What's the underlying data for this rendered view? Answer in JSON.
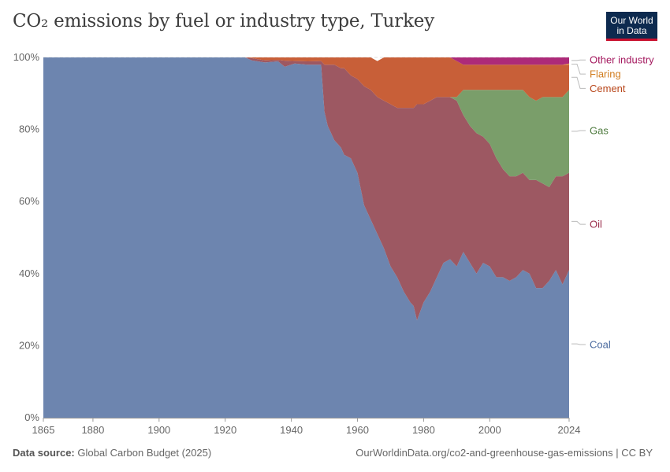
{
  "title": "CO₂ emissions by fuel or industry type, Turkey",
  "logo": {
    "line1": "Our World",
    "line2": "in Data"
  },
  "footer": {
    "source_label": "Data source:",
    "source": "Global Carbon Budget (2025)",
    "url": "OurWorldinData.org/co2-and-greenhouse-gas-emissions | CC BY"
  },
  "chart_data": {
    "type": "area",
    "stacked": true,
    "percent": true,
    "x_ticks": [
      "1865",
      "1880",
      "1900",
      "1920",
      "1940",
      "1960",
      "1980",
      "2000",
      "2024"
    ],
    "y_ticks": [
      "0%",
      "20%",
      "40%",
      "60%",
      "80%",
      "100%"
    ],
    "ylim": [
      0,
      100
    ],
    "xlim": [
      1865,
      2024
    ],
    "grid": "horizontal",
    "legend_position": "right",
    "x": [
      1865,
      1926,
      1928,
      1932,
      1936,
      1938,
      1941,
      1945,
      1949,
      1950,
      1951,
      1953,
      1955,
      1956,
      1958,
      1960,
      1962,
      1964,
      1966,
      1968,
      1970,
      1972,
      1974,
      1976,
      1977,
      1978,
      1980,
      1982,
      1984,
      1986,
      1988,
      1990,
      1992,
      1994,
      1996,
      1998,
      2000,
      2002,
      2004,
      2006,
      2008,
      2010,
      2012,
      2014,
      2016,
      2018,
      2020,
      2022,
      2024
    ],
    "series": [
      {
        "name": "Coal",
        "color": "#6d85af",
        "values": [
          100,
          100,
          99.2,
          98.6,
          98.9,
          97.4,
          98.3,
          98,
          98,
          85,
          81,
          77,
          75,
          73,
          72,
          68,
          59,
          55,
          51,
          47,
          42,
          39,
          35,
          32,
          31,
          27,
          32,
          35,
          39,
          43,
          44,
          42,
          46,
          43,
          40,
          43,
          42,
          39,
          39,
          38,
          39,
          41,
          40,
          36,
          36,
          38,
          41,
          37,
          41
        ]
      },
      {
        "name": "Oil",
        "color": "#9d5862",
        "values": [
          0,
          0,
          0.6,
          0.6,
          0.4,
          1.7,
          0.7,
          0.9,
          1,
          13,
          17,
          21,
          22,
          24,
          23,
          26,
          33,
          36,
          38,
          41,
          45,
          47,
          51,
          54,
          55,
          60,
          55,
          53,
          50,
          46,
          45,
          46,
          38,
          38,
          39,
          35,
          34,
          33,
          30,
          29,
          28,
          27,
          26,
          30,
          29,
          26,
          26,
          30,
          27
        ]
      },
      {
        "name": "Gas",
        "color": "#7a9e6a",
        "values": [
          0,
          0,
          0,
          0,
          0,
          0,
          0,
          0,
          0,
          0,
          0,
          0,
          0,
          0,
          0,
          0,
          0,
          0,
          0,
          0,
          0,
          0,
          0,
          0,
          0,
          0,
          0,
          0,
          0,
          0,
          0,
          1,
          7,
          10,
          12,
          13,
          15,
          19,
          22,
          24,
          24,
          23,
          23,
          22,
          24,
          25,
          22,
          22,
          23
        ]
      },
      {
        "name": "Cement",
        "color": "#c85f38",
        "values": [
          0,
          0,
          0.2,
          0.8,
          0.7,
          0.9,
          1,
          1.1,
          1,
          2,
          2,
          2,
          3,
          3,
          5,
          6,
          8,
          9,
          10,
          12,
          13,
          14,
          14,
          14,
          14,
          13,
          13,
          12,
          11,
          11,
          11,
          10,
          7,
          7,
          7,
          7,
          7,
          7,
          7,
          7,
          7,
          7,
          9,
          10,
          9,
          9,
          9,
          9,
          7
        ]
      },
      {
        "name": "Flaring",
        "color": "#e0973e",
        "values": [
          0,
          0,
          0,
          0,
          0,
          0,
          0,
          0,
          0,
          0,
          0,
          0,
          0,
          0,
          0,
          0,
          0,
          0,
          0,
          0,
          0,
          0,
          0,
          0,
          0,
          0,
          0,
          0,
          0,
          0,
          0,
          0,
          0,
          0,
          0,
          0,
          0,
          0,
          0,
          0,
          0,
          0,
          0,
          0,
          0,
          0,
          0,
          0,
          0.3
        ]
      },
      {
        "name": "Other industry",
        "color": "#ad2a79",
        "values": [
          0,
          0,
          0,
          0,
          0,
          0,
          0,
          0,
          0,
          0,
          0,
          0,
          0,
          0,
          0,
          0,
          0,
          0,
          0,
          0,
          0,
          0,
          0,
          0,
          0,
          0,
          0,
          0,
          0,
          0,
          0,
          1,
          2,
          2,
          2,
          2,
          2,
          2,
          2,
          2,
          2,
          2,
          2,
          2,
          2,
          2,
          2,
          2,
          1.7
        ]
      }
    ],
    "legend": [
      {
        "label": "Other industry",
        "color": "#a4185e",
        "value": 99.3
      },
      {
        "label": "Flaring",
        "color": "#d17d1f",
        "value": 95.4
      },
      {
        "label": "Cement",
        "color": "#b8461a",
        "value": 91.4
      },
      {
        "label": "Gas",
        "color": "#4d7a3d",
        "value": 79.7
      },
      {
        "label": "Oil",
        "color": "#9a2d4a",
        "value": 53.7
      },
      {
        "label": "Coal",
        "color": "#4a6a9e",
        "value": 20.3
      }
    ]
  }
}
